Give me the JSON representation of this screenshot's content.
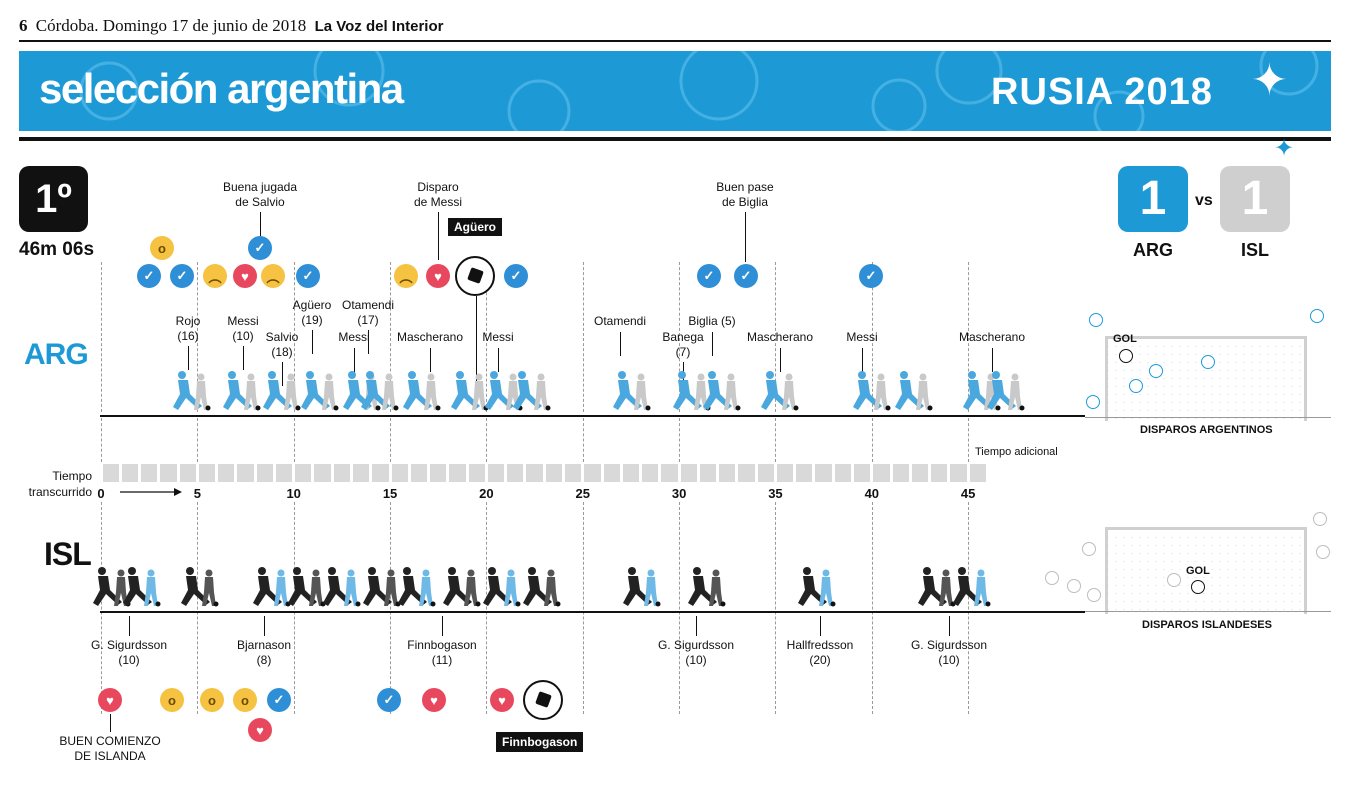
{
  "masthead": {
    "page": "6",
    "dateline": "Córdoba. Domingo 17 de junio de 2018",
    "paper": "La Voz del Interior"
  },
  "banner": {
    "section": "selección argentina",
    "brand": "RUSIA 2018"
  },
  "half": {
    "label": "1º",
    "time": "46m 06s"
  },
  "score": {
    "home_goals": "1",
    "home_team": "ARG",
    "vs": "vs",
    "away_goals": "1",
    "away_team": "ISL",
    "home_color": "#1d9ad6",
    "away_color": "#cfcfcf"
  },
  "timeline": {
    "ticks": [
      "0",
      "5",
      "10",
      "15",
      "20",
      "25",
      "30",
      "35",
      "40",
      "45"
    ],
    "axis_label_1": "Tiempo",
    "axis_label_2": "transcurrido",
    "extra_time": "Tiempo adicional"
  },
  "arg": {
    "label": "ARG",
    "highlights": [
      "Buena jugada\nde Salvio",
      "Disparo\nde Messi",
      "Buen pase\nde Biglia"
    ],
    "goal_scorer": "Agüero",
    "players": [
      "Rojo\n(16)",
      "Messi\n(10)",
      "Salvio\n(18)",
      "Agüero\n(19)",
      "Messi",
      "Otamendi\n(17)",
      "Mascherano",
      "Messi",
      "Otamendi",
      "Banega\n(7)",
      "Biglia (5)",
      "Mascherano",
      "Messi",
      "Mascherano"
    ],
    "shots_title": "DISPAROS ARGENTINOS",
    "gol": "GOL"
  },
  "isl": {
    "label": "ISL",
    "players": [
      "G. Sigurdsson\n(10)",
      "Bjarnason\n(8)",
      "Finnbogason\n(11)",
      "G. Sigurdsson\n(10)",
      "Hallfredsson\n(20)",
      "G. Sigurdsson\n(10)"
    ],
    "highlight": "BUEN COMIENZO\nDE ISLANDA",
    "goal_scorer": "Finnbogason",
    "shots_title": "DISPAROS ISLANDESES",
    "gol": "GOL"
  },
  "icons": {
    "like": "thumbs-up-icon",
    "love": "heart-icon",
    "wow": "surprised-face-icon",
    "sad": "sad-face-icon",
    "ball": "soccer-ball-icon",
    "star": "sparkle-star-icon"
  }
}
